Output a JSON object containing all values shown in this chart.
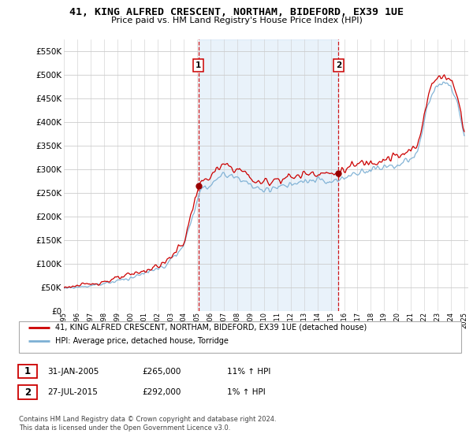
{
  "title": "41, KING ALFRED CRESCENT, NORTHAM, BIDEFORD, EX39 1UE",
  "subtitle": "Price paid vs. HM Land Registry's House Price Index (HPI)",
  "ylim": [
    0,
    575000
  ],
  "yticks": [
    0,
    50000,
    100000,
    150000,
    200000,
    250000,
    300000,
    350000,
    400000,
    450000,
    500000,
    550000
  ],
  "ytick_labels": [
    "£0",
    "£50K",
    "£100K",
    "£150K",
    "£200K",
    "£250K",
    "£300K",
    "£350K",
    "£400K",
    "£450K",
    "£500K",
    "£550K"
  ],
  "sale1_date_num": 2005.08,
  "sale1_price": 265000,
  "sale2_date_num": 2015.58,
  "sale2_price": 292000,
  "line1_color": "#cc0000",
  "line2_color": "#7db0d4",
  "vline_color": "#cc0000",
  "shade_color": "#ddeeff",
  "background_color": "#ffffff",
  "grid_color": "#cccccc",
  "legend_label1": "41, KING ALFRED CRESCENT, NORTHAM, BIDEFORD, EX39 1UE (detached house)",
  "legend_label2": "HPI: Average price, detached house, Torridge",
  "footnote": "Contains HM Land Registry data © Crown copyright and database right 2024.\nThis data is licensed under the Open Government Licence v3.0.",
  "table_row1": [
    "1",
    "31-JAN-2005",
    "£265,000",
    "11% ↑ HPI"
  ],
  "table_row2": [
    "2",
    "27-JUL-2015",
    "£292,000",
    "1% ↑ HPI"
  ]
}
